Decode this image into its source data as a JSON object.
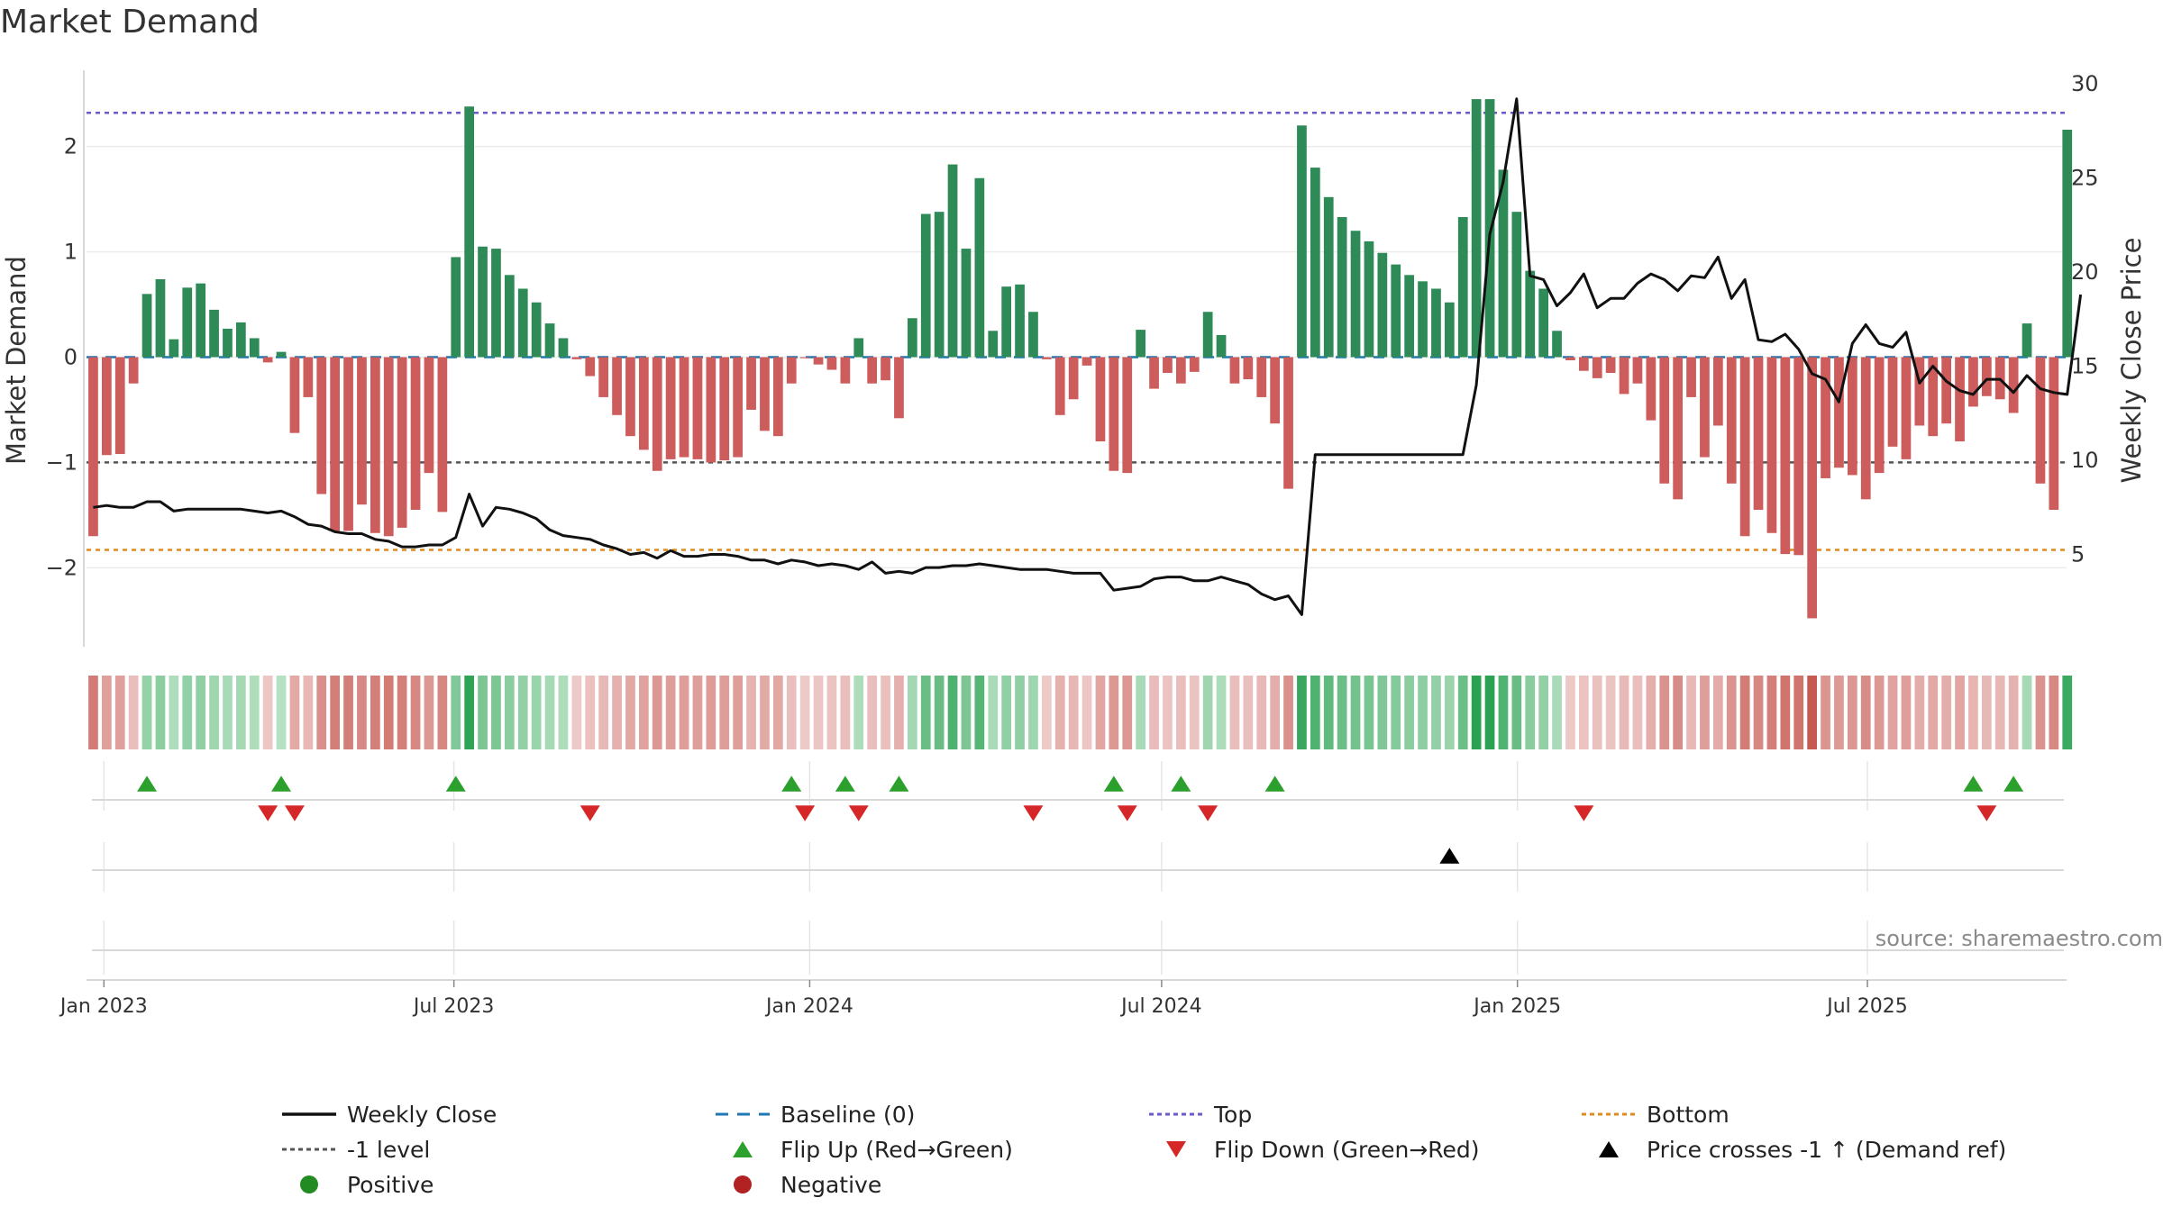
{
  "title": "Market Demand",
  "source": "source: sharemaestro.com",
  "colors": {
    "positive_bar": "#2e8b57",
    "negative_bar": "#cd5c5c",
    "price_line": "#111111",
    "baseline": "#1f77b4",
    "top": "#6a5acd",
    "minus1": "#555555",
    "bottom": "#e08a1e",
    "flip_up": "#2ca02c",
    "flip_down": "#d62728",
    "cross": "#000000",
    "positive_dot": "#228b22",
    "negative_dot": "#b22222"
  },
  "chart_data": {
    "type": "bar",
    "title": "Market Demand",
    "ylabel": "Market Demand",
    "y2label": "Weekly Close Price",
    "ylim": [
      -2.75,
      2.75
    ],
    "y2lim": [
      0,
      31
    ],
    "yticks": [
      "2",
      "1",
      "0",
      "−1",
      "−2"
    ],
    "y2ticks": [
      "30",
      "25",
      "20",
      "15",
      "10",
      "5"
    ],
    "x_start": "2022-12-23",
    "x_end": "2025-10-12",
    "xtick_labels": [
      "Jan 2023",
      "Jul 2023",
      "Jan 2024",
      "Jul 2024",
      "Jan 2025",
      "Jul 2025"
    ],
    "levels": {
      "top": 2.32,
      "minus1": -1.0,
      "bottom": -1.83,
      "baseline": 0
    },
    "demand": [
      -1.7,
      -0.93,
      -0.92,
      -0.25,
      0.6,
      0.74,
      0.17,
      0.66,
      0.7,
      0.45,
      0.27,
      0.33,
      0.18,
      -0.05,
      0.05,
      -0.72,
      -0.38,
      -1.3,
      -1.65,
      -1.65,
      -1.4,
      -1.67,
      -1.7,
      -1.62,
      -1.45,
      -1.1,
      -1.47,
      0.95,
      2.38,
      1.05,
      1.03,
      0.78,
      0.65,
      0.52,
      0.32,
      0.18,
      -0.02,
      -0.18,
      -0.38,
      -0.55,
      -0.75,
      -0.88,
      -1.08,
      -0.97,
      -0.95,
      -0.97,
      -1.0,
      -0.98,
      -0.95,
      -0.5,
      -0.7,
      -0.75,
      -0.25,
      -0.01,
      -0.07,
      -0.12,
      -0.25,
      0.18,
      -0.25,
      -0.22,
      -0.58,
      0.37,
      1.36,
      1.38,
      1.83,
      1.03,
      1.7,
      0.25,
      0.67,
      0.69,
      0.43,
      -0.02,
      -0.55,
      -0.4,
      -0.08,
      -0.8,
      -1.08,
      -1.1,
      0.26,
      -0.3,
      -0.15,
      -0.25,
      -0.14,
      0.43,
      0.21,
      -0.25,
      -0.21,
      -0.38,
      -0.63,
      -1.25,
      2.2,
      1.8,
      1.52,
      1.33,
      1.2,
      1.1,
      0.99,
      0.88,
      0.78,
      0.72,
      0.65,
      0.52,
      1.33,
      2.45,
      2.45,
      1.78,
      1.38,
      0.82,
      0.65,
      0.25,
      -0.03,
      -0.13,
      -0.2,
      -0.15,
      -0.35,
      -0.25,
      -0.6,
      -1.2,
      -1.35,
      -0.38,
      -0.95,
      -0.65,
      -1.2,
      -1.7,
      -1.45,
      -1.67,
      -1.87,
      -1.88,
      -2.48,
      -1.15,
      -1.05,
      -1.12,
      -1.35,
      -1.1,
      -0.85,
      -0.97,
      -0.65,
      -0.75,
      -0.63,
      -0.8,
      -0.47,
      -0.37,
      -0.4,
      -0.53,
      0.32,
      -1.2,
      -1.45,
      2.16
    ],
    "close": [
      7.5,
      7.6,
      7.5,
      7.5,
      7.8,
      7.8,
      7.3,
      7.4,
      7.4,
      7.4,
      7.4,
      7.4,
      7.3,
      7.2,
      7.3,
      7.0,
      6.6,
      6.5,
      6.2,
      6.1,
      6.1,
      5.8,
      5.7,
      5.4,
      5.4,
      5.5,
      5.5,
      5.9,
      8.2,
      6.5,
      7.5,
      7.4,
      7.2,
      6.9,
      6.3,
      6.0,
      5.9,
      5.8,
      5.5,
      5.3,
      5.0,
      5.1,
      4.8,
      5.2,
      4.9,
      4.9,
      5.0,
      5.0,
      4.9,
      4.7,
      4.7,
      4.5,
      4.7,
      4.6,
      4.4,
      4.5,
      4.4,
      4.2,
      4.6,
      4.0,
      4.1,
      4.0,
      4.3,
      4.3,
      4.4,
      4.4,
      4.5,
      4.4,
      4.3,
      4.2,
      4.2,
      4.2,
      4.1,
      4.0,
      4.0,
      4.0,
      3.1,
      3.2,
      3.3,
      3.7,
      3.8,
      3.8,
      3.6,
      3.6,
      3.8,
      3.6,
      3.4,
      2.9,
      2.6,
      2.8,
      1.8,
      10.3,
      10.3,
      10.3,
      10.3,
      10.3,
      10.3,
      10.3,
      10.3,
      10.3,
      10.3,
      10.3,
      10.3,
      14.0,
      22.0,
      24.8,
      29.2,
      19.8,
      19.6,
      18.2,
      18.9,
      19.9,
      18.1,
      18.6,
      18.6,
      19.4,
      19.9,
      19.6,
      19.0,
      19.8,
      19.7,
      20.8,
      18.6,
      19.6,
      16.4,
      16.3,
      16.7,
      15.9,
      14.6,
      14.3,
      13.1,
      16.2,
      17.2,
      16.2,
      16.0,
      16.8,
      14.1,
      15.0,
      14.2,
      13.7,
      13.5,
      14.3,
      14.3,
      13.6,
      14.5,
      13.8,
      13.6,
      13.5,
      18.8
    ],
    "flips_up": [
      4,
      14,
      27,
      52,
      56,
      60,
      76,
      81,
      88,
      140,
      143
    ],
    "flips_down": [
      13,
      15,
      37,
      53,
      57,
      70,
      77,
      83,
      111,
      141
    ],
    "price_cross": [
      101
    ]
  },
  "legend": [
    {
      "label": "Weekly Close",
      "kind": "line-solid",
      "color": "#111111"
    },
    {
      "label": "Baseline (0)",
      "kind": "line-dash",
      "color": "#1f77b4"
    },
    {
      "label": "Top",
      "kind": "line-dot",
      "color": "#6a5acd"
    },
    {
      "label": "Bottom",
      "kind": "line-dot",
      "color": "#e08a1e"
    },
    {
      "label": "-1 level",
      "kind": "line-dot",
      "color": "#555555"
    },
    {
      "label": "Flip Up (Red→Green)",
      "kind": "tri-up",
      "color": "#2ca02c"
    },
    {
      "label": "Flip Down (Green→Red)",
      "kind": "tri-down",
      "color": "#d62728"
    },
    {
      "label": "Price crosses -1 ↑ (Demand ref)",
      "kind": "tri-up",
      "color": "#000000"
    },
    {
      "label": "Positive",
      "kind": "dot",
      "color": "#228b22"
    },
    {
      "label": "Negative",
      "kind": "dot",
      "color": "#b22222"
    }
  ]
}
